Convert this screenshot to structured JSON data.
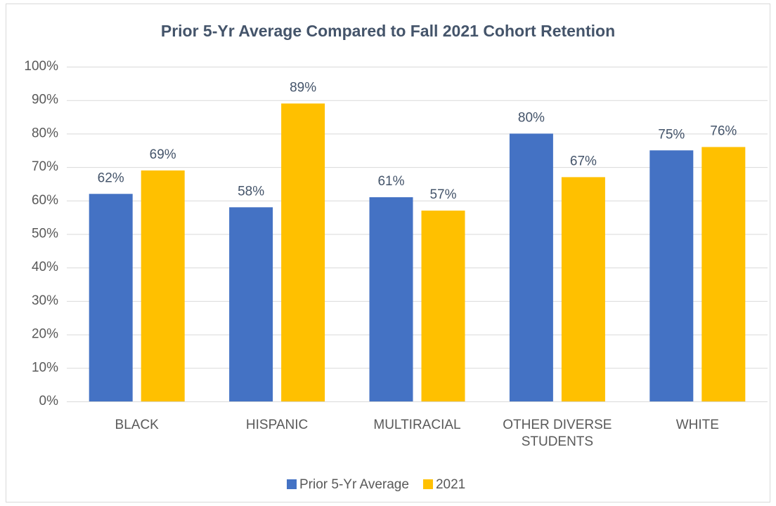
{
  "chart_data": {
    "type": "bar",
    "title": "Prior 5-Yr Average Compared to Fall 2021 Cohort Retention",
    "categories": [
      "BLACK",
      "HISPANIC",
      "MULTIRACIAL",
      "OTHER DIVERSE STUDENTS",
      "WHITE"
    ],
    "series": [
      {
        "name": "Prior 5-Yr Average",
        "color": "#4472c4",
        "values": [
          62,
          58,
          61,
          80,
          75
        ],
        "value_labels": [
          "62%",
          "58%",
          "61%",
          "80%",
          "75%"
        ]
      },
      {
        "name": "2021",
        "color": "#ffc000",
        "values": [
          69,
          89,
          57,
          67,
          76
        ],
        "value_labels": [
          "69%",
          "89%",
          "57%",
          "67%",
          "76%"
        ]
      }
    ],
    "ylim": [
      0,
      100
    ],
    "yticks": [
      {
        "value": 0,
        "label": "0%"
      },
      {
        "value": 10,
        "label": "10%"
      },
      {
        "value": 20,
        "label": "20%"
      },
      {
        "value": 30,
        "label": "30%"
      },
      {
        "value": 40,
        "label": "40%"
      },
      {
        "value": 50,
        "label": "50%"
      },
      {
        "value": 60,
        "label": "60%"
      },
      {
        "value": 70,
        "label": "70%"
      },
      {
        "value": 80,
        "label": "80%"
      },
      {
        "value": 90,
        "label": "90%"
      },
      {
        "value": 100,
        "label": "100%"
      }
    ],
    "grid": true,
    "legend": "bottom"
  }
}
